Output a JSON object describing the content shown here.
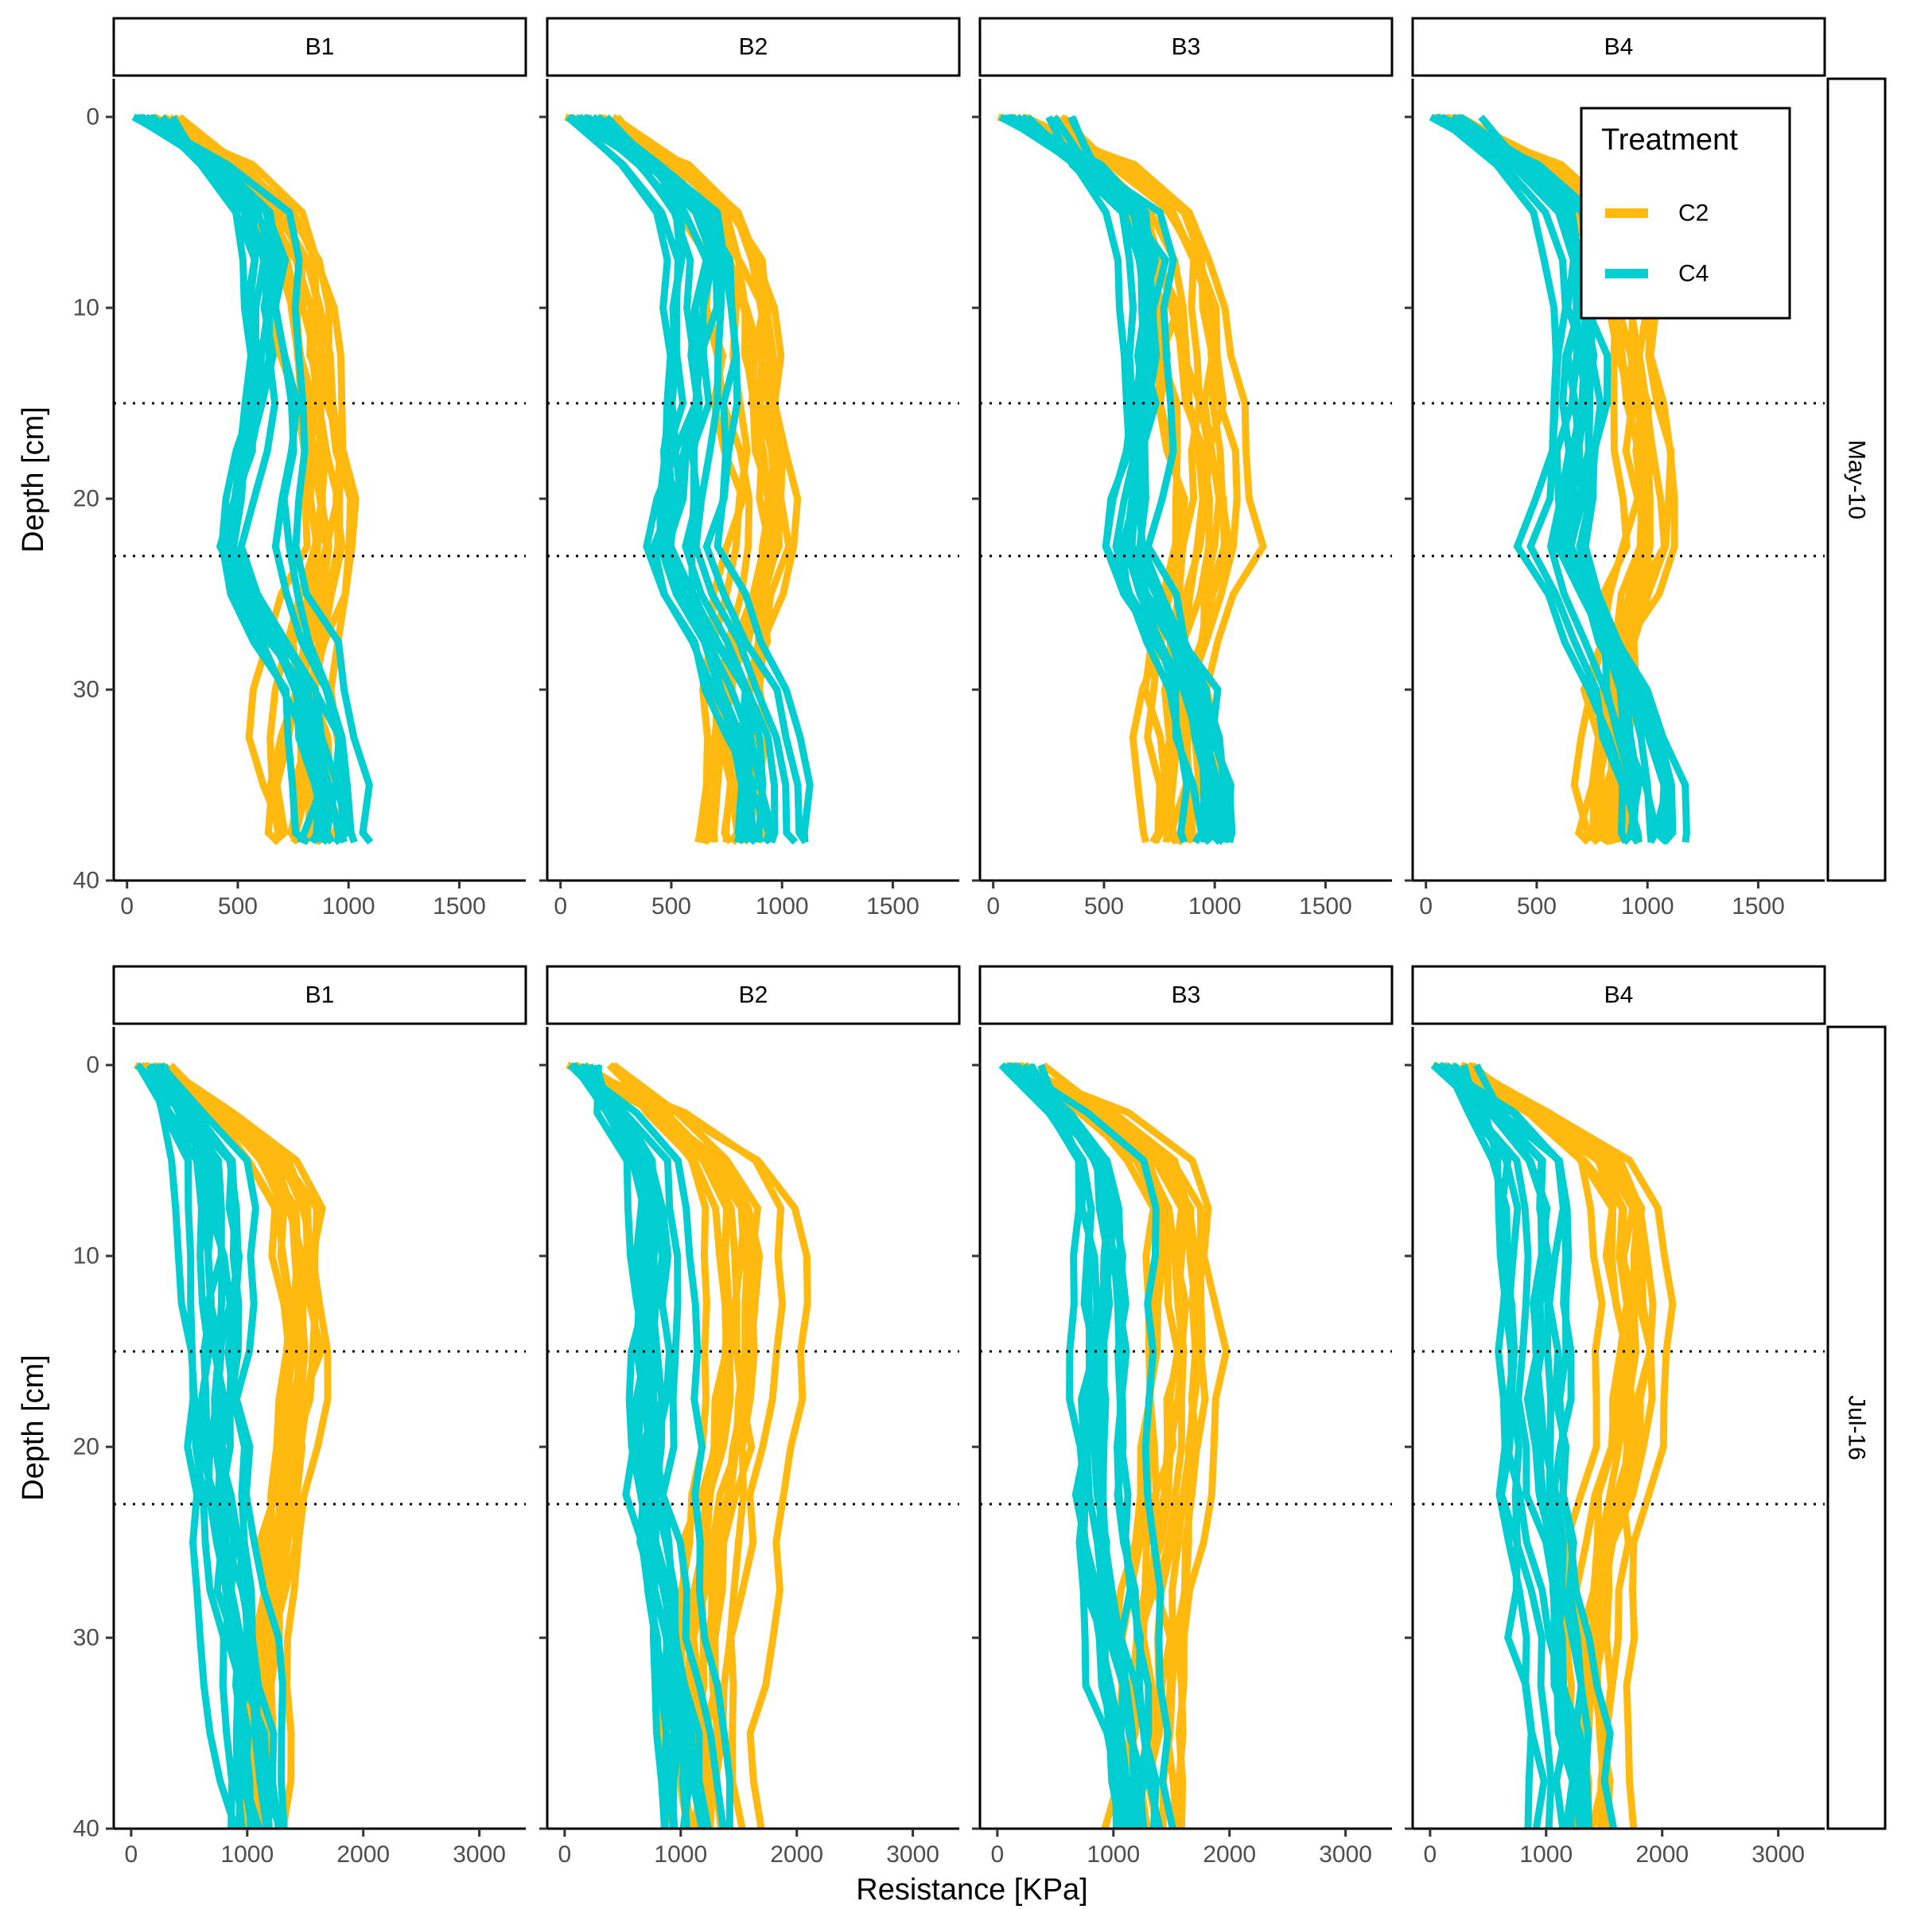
{
  "chart_data": {
    "type": "line",
    "xlabel": "Resistance [KPa]",
    "ylabel": "Depth [cm]",
    "legend": {
      "title": "Treatment",
      "position": "top-right",
      "entries": [
        {
          "name": "C2",
          "color": "#FFB90F"
        },
        {
          "name": "C4",
          "color": "#00CED1"
        }
      ]
    },
    "reference_lines_depth": [
      15,
      23
    ],
    "ylim": [
      40,
      -2
    ],
    "yticks": [
      "0",
      "10",
      "20",
      "30",
      "40"
    ],
    "rows": [
      {
        "label": "May-10",
        "xlim": [
          -60,
          1800
        ],
        "xticks": [
          "0",
          "500",
          "1000",
          "1500"
        ],
        "panels": [
          {
            "label": "B1"
          },
          {
            "label": "B2"
          },
          {
            "label": "B3"
          },
          {
            "label": "B4"
          }
        ],
        "profile_summary": {
          "C2": {
            "mean_profile": [
              [
                0,
                150
              ],
              [
                2.5,
                500
              ],
              [
                5,
                700
              ],
              [
                7.5,
                800
              ],
              [
                10,
                850
              ],
              [
                15,
                900
              ],
              [
                20,
                950
              ],
              [
                23,
                950
              ],
              [
                25,
                900
              ],
              [
                30,
                800
              ],
              [
                35,
                800
              ],
              [
                38,
                800
              ]
            ],
            "profiles_per_panel": 12
          },
          "C4": {
            "mean_profile": [
              [
                0,
                150
              ],
              [
                2.5,
                400
              ],
              [
                5,
                600
              ],
              [
                7.5,
                650
              ],
              [
                10,
                650
              ],
              [
                15,
                650
              ],
              [
                20,
                600
              ],
              [
                23,
                550
              ],
              [
                25,
                650
              ],
              [
                30,
                850
              ],
              [
                35,
                950
              ],
              [
                38,
                950
              ]
            ],
            "profiles_per_panel": 12
          }
        }
      },
      {
        "label": "Jul-16",
        "xlim": [
          -150,
          3400
        ],
        "xticks": [
          "0",
          "1000",
          "2000",
          "3000"
        ],
        "panels": [
          {
            "label": "B1"
          },
          {
            "label": "B2"
          },
          {
            "label": "B3"
          },
          {
            "label": "B4"
          }
        ],
        "profile_summary": {
          "C2": {
            "mean_profile": [
              [
                0,
                400
              ],
              [
                2.5,
                900
              ],
              [
                5,
                1400
              ],
              [
                7.5,
                1600
              ],
              [
                10,
                1600
              ],
              [
                15,
                1650
              ],
              [
                20,
                1600
              ],
              [
                23,
                1500
              ],
              [
                25,
                1450
              ],
              [
                30,
                1350
              ],
              [
                35,
                1300
              ],
              [
                40,
                1300
              ]
            ],
            "profiles_per_panel": 12
          },
          "C4": {
            "mean_profile": [
              [
                0,
                150
              ],
              [
                2.5,
                500
              ],
              [
                5,
                800
              ],
              [
                7.5,
                850
              ],
              [
                10,
                850
              ],
              [
                15,
                850
              ],
              [
                20,
                850
              ],
              [
                23,
                850
              ],
              [
                25,
                900
              ],
              [
                30,
                1000
              ],
              [
                35,
                1100
              ],
              [
                40,
                1150
              ]
            ],
            "profiles_per_panel": 12
          }
        }
      }
    ]
  }
}
